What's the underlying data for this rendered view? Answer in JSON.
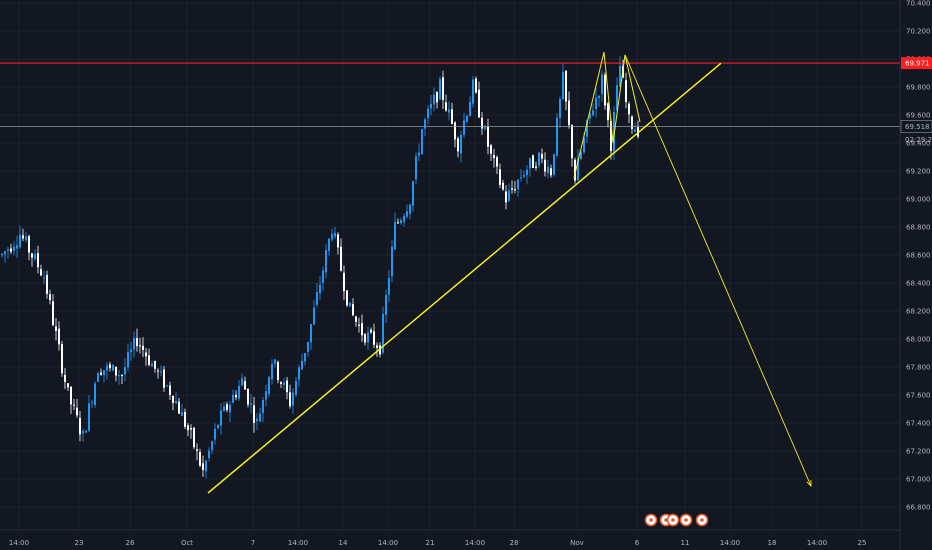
{
  "colors": {
    "background": "#131722",
    "grid": "#1e2230",
    "axis_text": "#b2b5be",
    "bull": "#2196f3",
    "bear": "#ffffff",
    "resistance": "#ff1e1e",
    "trend": "#f2f01a",
    "current_price_line": "#9598a1"
  },
  "chart_data": {
    "type": "candlestick",
    "y_range": [
      66.7,
      70.3
    ],
    "y_ticks": [
      "70.400",
      "70.200",
      "70.000",
      "69.800",
      "69.600",
      "69.400",
      "69.200",
      "69.000",
      "68.800",
      "68.600",
      "68.400",
      "68.200",
      "68.000",
      "67.800",
      "67.600",
      "67.400",
      "67.200",
      "67.000",
      "66.800"
    ],
    "x_ticks": [
      "14:00",
      "23",
      "26",
      "Oct",
      "7",
      "14:00",
      "14",
      "14:00",
      "21",
      "14:00",
      "28",
      "Nov",
      "6",
      "11",
      "14:00",
      "18",
      "14:00",
      "25"
    ],
    "x_tick_index": [
      6,
      26,
      43,
      62,
      84,
      99,
      114,
      129,
      143,
      158,
      171,
      192,
      212,
      228,
      243,
      257,
      272,
      287
    ],
    "price_tags": {
      "resistance": "69.971",
      "current": "69.518",
      "countdown": "02:29:25"
    },
    "resistance_level": 69.971,
    "current_price": 69.518,
    "anchors": [
      {
        "i": 0,
        "p": 68.6
      },
      {
        "i": 6,
        "p": 68.75
      },
      {
        "i": 14,
        "p": 68.45
      },
      {
        "i": 22,
        "p": 67.6
      },
      {
        "i": 27,
        "p": 67.3
      },
      {
        "i": 32,
        "p": 67.8
      },
      {
        "i": 40,
        "p": 67.75
      },
      {
        "i": 45,
        "p": 68.0
      },
      {
        "i": 52,
        "p": 67.75
      },
      {
        "i": 57,
        "p": 67.6
      },
      {
        "i": 63,
        "p": 67.3
      },
      {
        "i": 67,
        "p": 67.05
      },
      {
        "i": 72,
        "p": 67.4
      },
      {
        "i": 80,
        "p": 67.7
      },
      {
        "i": 85,
        "p": 67.4
      },
      {
        "i": 90,
        "p": 67.85
      },
      {
        "i": 96,
        "p": 67.55
      },
      {
        "i": 102,
        "p": 68.0
      },
      {
        "i": 110,
        "p": 68.8
      },
      {
        "i": 116,
        "p": 68.2
      },
      {
        "i": 120,
        "p": 68.05
      },
      {
        "i": 126,
        "p": 67.95
      },
      {
        "i": 131,
        "p": 68.8
      },
      {
        "i": 136,
        "p": 69.0
      },
      {
        "i": 140,
        "p": 69.5
      },
      {
        "i": 146,
        "p": 69.8
      },
      {
        "i": 152,
        "p": 69.4
      },
      {
        "i": 157,
        "p": 69.8
      },
      {
        "i": 163,
        "p": 69.3
      },
      {
        "i": 168,
        "p": 69.0
      },
      {
        "i": 174,
        "p": 69.2
      },
      {
        "i": 179,
        "p": 69.3
      },
      {
        "i": 183,
        "p": 69.2
      },
      {
        "i": 187,
        "p": 69.85
      },
      {
        "i": 191,
        "p": 69.15
      },
      {
        "i": 196,
        "p": 69.6
      },
      {
        "i": 200,
        "p": 69.85
      },
      {
        "i": 203,
        "p": 69.4
      },
      {
        "i": 206,
        "p": 69.95
      },
      {
        "i": 209,
        "p": 69.55
      },
      {
        "i": 212,
        "p": 69.5
      }
    ],
    "resistance_line": {
      "from_i": 0,
      "to_i": 300,
      "p": 69.971
    },
    "trend_line": {
      "from_i": 69,
      "from_p": 66.9,
      "to_i": 240,
      "to_p": 69.97
    },
    "w_pattern": [
      {
        "i": 191,
        "p": 69.15
      },
      {
        "i": 201,
        "p": 70.05
      },
      {
        "i": 204,
        "p": 69.4
      },
      {
        "i": 208,
        "p": 70.03
      },
      {
        "i": 213,
        "p": 69.55
      }
    ],
    "projection": {
      "from_i": 208,
      "from_p": 70.03,
      "to_i": 270,
      "to_p": 66.95
    },
    "event_markers": 5
  }
}
